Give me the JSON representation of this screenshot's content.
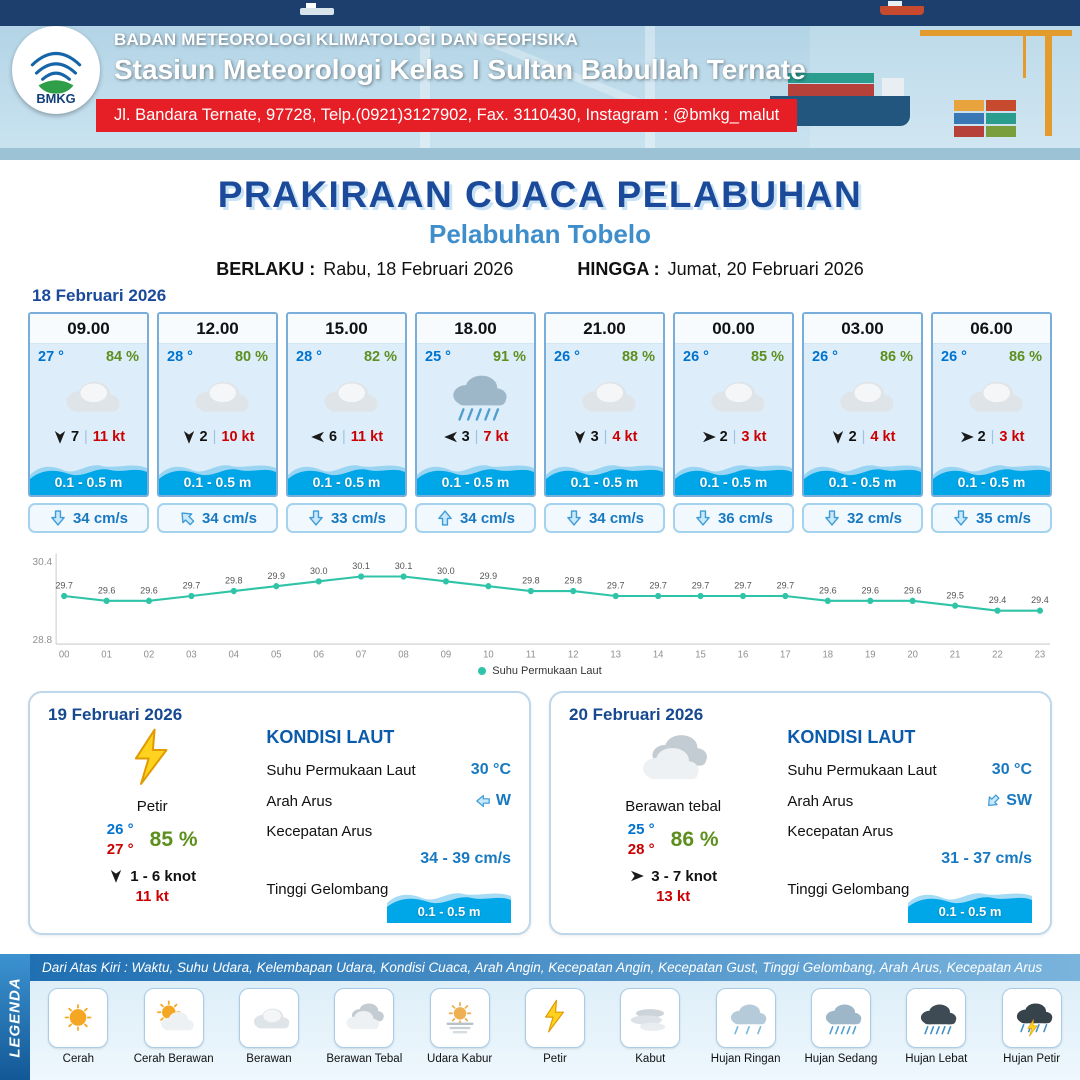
{
  "header": {
    "logo_text": "BMKG",
    "agency": "BADAN METEOROLOGI KLIMATOLOGI DAN GEOFISIKA",
    "station": "Stasiun Meteorologi Kelas I Sultan Babullah Ternate",
    "address": "Jl. Bandara Ternate, 97728, Telp.(0921)3127902, Fax. 3110430, Instagram : @bmkg_malut"
  },
  "title": {
    "main": "PRAKIRAAN CUACA PELABUHAN",
    "subtitle": "Pelabuhan Tobelo",
    "valid_from_label": "BERLAKU :",
    "valid_from": "Rabu, 18 Februari 2026",
    "valid_to_label": "HINGGA :",
    "valid_to": "Jumat, 20 Februari 2026"
  },
  "forecast": {
    "date": "18 Februari 2026",
    "cards": [
      {
        "time": "09.00",
        "temp": "27 °",
        "humidity": "84 %",
        "icon": "berawan",
        "wind_point": "S",
        "wind_speed": "7",
        "wind_gust": "11 kt",
        "wave": "0.1 - 0.5 m",
        "current_point": "S",
        "current_speed": "34 cm/s"
      },
      {
        "time": "12.00",
        "temp": "28 °",
        "humidity": "80 %",
        "icon": "berawan",
        "wind_point": "S",
        "wind_speed": "2",
        "wind_gust": "10 kt",
        "wave": "0.1 - 0.5 m",
        "current_point": "NW",
        "current_speed": "34 cm/s"
      },
      {
        "time": "15.00",
        "temp": "28 °",
        "humidity": "82 %",
        "icon": "berawan",
        "wind_point": "W",
        "wind_speed": "6",
        "wind_gust": "11 kt",
        "wave": "0.1 - 0.5 m",
        "current_point": "S",
        "current_speed": "33 cm/s"
      },
      {
        "time": "18.00",
        "temp": "25 °",
        "humidity": "91 %",
        "icon": "hujan-sedang",
        "wind_point": "W",
        "wind_speed": "3",
        "wind_gust": "7 kt",
        "wave": "0.1 - 0.5 m",
        "current_point": "N",
        "current_speed": "34 cm/s"
      },
      {
        "time": "21.00",
        "temp": "26 °",
        "humidity": "88 %",
        "icon": "berawan",
        "wind_point": "S",
        "wind_speed": "3",
        "wind_gust": "4 kt",
        "wave": "0.1 - 0.5 m",
        "current_point": "S",
        "current_speed": "34 cm/s"
      },
      {
        "time": "00.00",
        "temp": "26 °",
        "humidity": "85 %",
        "icon": "berawan",
        "wind_point": "E",
        "wind_speed": "2",
        "wind_gust": "3 kt",
        "wave": "0.1 - 0.5 m",
        "current_point": "S",
        "current_speed": "36 cm/s"
      },
      {
        "time": "03.00",
        "temp": "26 °",
        "humidity": "86 %",
        "icon": "berawan",
        "wind_point": "S",
        "wind_speed": "2",
        "wind_gust": "4 kt",
        "wave": "0.1 - 0.5 m",
        "current_point": "S",
        "current_speed": "32 cm/s"
      },
      {
        "time": "06.00",
        "temp": "26 °",
        "humidity": "86 %",
        "icon": "berawan",
        "wind_point": "E",
        "wind_speed": "2",
        "wind_gust": "3 kt",
        "wave": "0.1 - 0.5 m",
        "current_point": "S",
        "current_speed": "35 cm/s"
      }
    ]
  },
  "chart_data": {
    "type": "line",
    "x": [
      "00",
      "01",
      "02",
      "03",
      "04",
      "05",
      "06",
      "07",
      "08",
      "09",
      "10",
      "11",
      "12",
      "13",
      "14",
      "15",
      "16",
      "17",
      "18",
      "19",
      "20",
      "21",
      "22",
      "23"
    ],
    "series": [
      {
        "name": "Suhu Permukaan Laut",
        "values": [
          29.7,
          29.6,
          29.6,
          29.7,
          29.8,
          29.9,
          30.0,
          30.1,
          30.1,
          30.0,
          29.9,
          29.8,
          29.8,
          29.7,
          29.7,
          29.7,
          29.7,
          29.7,
          29.6,
          29.6,
          29.6,
          29.5,
          29.4,
          29.4
        ]
      }
    ],
    "ylim": [
      28.8,
      30.4
    ],
    "line_color": "#2fc4a7",
    "legend_label": "Suhu Permukaan Laut",
    "legend_position": "bottom",
    "grid": false
  },
  "summaries": [
    {
      "date": "19 Februari 2026",
      "icon": "petir",
      "condition": "Petir",
      "temp_min": "26 °",
      "temp_max": "27 °",
      "humidity": "85 %",
      "wind_point": "S",
      "wind_range": "1 - 6 knot",
      "gust": "11 kt",
      "sea": {
        "title": "KONDISI LAUT",
        "sst_label": "Suhu Permukaan Laut",
        "sst_value": "30 °C",
        "current_dir_label": "Arah Arus",
        "current_dir_value": "W",
        "current_point": "W",
        "current_speed_label": "Kecepatan Arus",
        "current_speed_value": "34 - 39 cm/s",
        "wave_label": "Tinggi Gelombang",
        "wave_value": "0.1 - 0.5 m"
      }
    },
    {
      "date": "20 Februari 2026",
      "icon": "berawan-tebal",
      "condition": "Berawan tebal",
      "temp_min": "25 °",
      "temp_max": "28 °",
      "humidity": "86 %",
      "wind_point": "E",
      "wind_range": "3 - 7 knot",
      "gust": "13 kt",
      "sea": {
        "title": "KONDISI LAUT",
        "sst_label": "Suhu Permukaan Laut",
        "sst_value": "30 °C",
        "current_dir_label": "Arah Arus",
        "current_dir_value": "SW",
        "current_point": "SW",
        "current_speed_label": "Kecepatan Arus",
        "current_speed_value": "31 - 37 cm/s",
        "wave_label": "Tinggi Gelombang",
        "wave_value": "0.1 - 0.5 m"
      }
    }
  ],
  "legend": {
    "strip_label": "LEGENDA",
    "caption": "Dari Atas Kiri : Waktu, Suhu Udara, Kelembapan Udara, Kondisi Cuaca, Arah Angin, Kecepatan Angin, Kecepatan Gust, Tinggi Gelombang, Arah Arus, Kecepatan Arus",
    "items": [
      {
        "icon": "cerah",
        "label": "Cerah"
      },
      {
        "icon": "cerah-berawan",
        "label": "Cerah Berawan"
      },
      {
        "icon": "berawan",
        "label": "Berawan"
      },
      {
        "icon": "berawan-tebal",
        "label": "Berawan Tebal"
      },
      {
        "icon": "udara-kabur",
        "label": "Udara Kabur"
      },
      {
        "icon": "petir",
        "label": "Petir"
      },
      {
        "icon": "kabut",
        "label": "Kabut"
      },
      {
        "icon": "hujan-ringan",
        "label": "Hujan Ringan"
      },
      {
        "icon": "hujan-sedang",
        "label": "Hujan Sedang"
      },
      {
        "icon": "hujan-lebat",
        "label": "Hujan Lebat"
      },
      {
        "icon": "hujan-petir",
        "label": "Hujan Petir"
      }
    ]
  },
  "colors": {
    "accent_blue": "#1b4a9b",
    "subtitle_blue": "#3f8ecc",
    "temp_blue": "#0073cf",
    "temp_red": "#cc0000",
    "humidity_green": "#5d8f1e",
    "wave_blue": "#00a7e8",
    "red_bar": "#e61e25",
    "chart_line": "#2fc4a7"
  }
}
